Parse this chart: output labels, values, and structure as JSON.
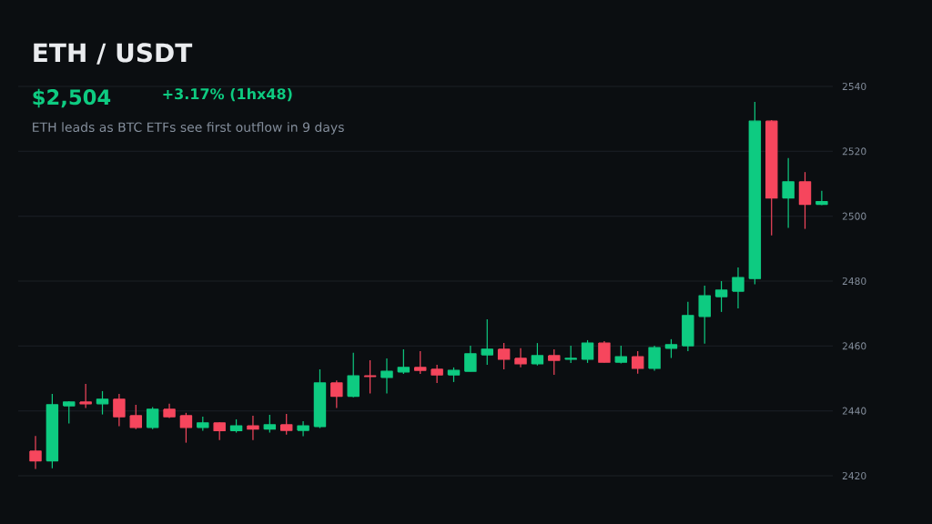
{
  "chart_data": {
    "type": "candlestick",
    "title": "ETH / USDT",
    "subtitle": "ETH leads as BTC ETFs see first outflow in 9 days",
    "annotations": [
      "$2,504",
      "+3.17%  (1hx48)"
    ],
    "categories": [
      null,
      null,
      null,
      null,
      null,
      null,
      null,
      null,
      null,
      null,
      null,
      null,
      null,
      null,
      null,
      null,
      null,
      null,
      null,
      null,
      null,
      null,
      null,
      null,
      null,
      null,
      null,
      null,
      null,
      null,
      null,
      null,
      null,
      null,
      null,
      null,
      null,
      null,
      null,
      null,
      null,
      null,
      null,
      null,
      null,
      null,
      null,
      null
    ],
    "ohlc": [
      [
        2427.6,
        2432.3,
        2422.1,
        2424.6
      ],
      [
        2424.6,
        2445.2,
        2422.3,
        2441.9
      ],
      [
        2441.6,
        2443.0,
        2436.1,
        2442.7
      ],
      [
        2442.7,
        2448.3,
        2440.9,
        2442.2
      ],
      [
        2442.2,
        2446.1,
        2438.9,
        2443.6
      ],
      [
        2443.6,
        2445.2,
        2435.3,
        2438.2
      ],
      [
        2438.5,
        2441.9,
        2434.4,
        2434.9
      ],
      [
        2434.9,
        2441.2,
        2434.4,
        2440.5
      ],
      [
        2440.5,
        2442.2,
        2437.8,
        2438.2
      ],
      [
        2438.5,
        2439.4,
        2430.2,
        2434.9
      ],
      [
        2434.9,
        2438.2,
        2433.9,
        2436.3
      ],
      [
        2436.3,
        2436.5,
        2431.0,
        2433.9
      ],
      [
        2433.9,
        2437.4,
        2433.3,
        2435.4
      ],
      [
        2435.4,
        2438.5,
        2431.0,
        2434.4
      ],
      [
        2434.4,
        2438.8,
        2433.3,
        2435.7
      ],
      [
        2435.7,
        2439.1,
        2432.7,
        2434.0
      ],
      [
        2434.0,
        2436.8,
        2432.2,
        2435.4
      ],
      [
        2435.2,
        2452.8,
        2434.7,
        2448.6
      ],
      [
        2448.6,
        2449.4,
        2440.9,
        2444.5
      ],
      [
        2444.5,
        2457.9,
        2444.2,
        2450.8
      ],
      [
        2450.8,
        2455.6,
        2445.4,
        2450.6
      ],
      [
        2450.3,
        2456.2,
        2445.4,
        2452.2
      ],
      [
        2452.0,
        2459.0,
        2451.4,
        2453.4
      ],
      [
        2453.4,
        2458.4,
        2451.4,
        2452.5
      ],
      [
        2452.8,
        2454.2,
        2448.6,
        2451.1
      ],
      [
        2451.1,
        2453.4,
        2448.9,
        2452.5
      ],
      [
        2452.2,
        2460.1,
        2452.2,
        2457.6
      ],
      [
        2457.3,
        2468.2,
        2454.2,
        2459.0
      ],
      [
        2459.0,
        2460.9,
        2452.8,
        2455.9
      ],
      [
        2456.2,
        2459.3,
        2453.4,
        2454.5
      ],
      [
        2454.5,
        2460.9,
        2454.0,
        2457.0
      ],
      [
        2457.0,
        2459.0,
        2451.1,
        2455.6
      ],
      [
        2455.9,
        2460.1,
        2454.8,
        2456.2
      ],
      [
        2455.9,
        2461.8,
        2454.8,
        2460.9
      ],
      [
        2460.9,
        2461.5,
        2454.9,
        2455.0
      ],
      [
        2455.0,
        2460.1,
        2454.6,
        2456.7
      ],
      [
        2456.7,
        2458.4,
        2451.5,
        2453.1
      ],
      [
        2453.1,
        2460.1,
        2452.4,
        2459.5
      ],
      [
        2459.3,
        2462.1,
        2456.3,
        2460.4
      ],
      [
        2460.1,
        2473.6,
        2458.4,
        2469.4
      ],
      [
        2469.1,
        2478.6,
        2460.7,
        2475.5
      ],
      [
        2475.2,
        2480.0,
        2470.5,
        2477.2
      ],
      [
        2476.9,
        2484.2,
        2471.6,
        2481.1
      ],
      [
        2480.8,
        2535.2,
        2479.0,
        2529.3
      ],
      [
        2529.3,
        2529.6,
        2494.1,
        2505.6
      ],
      [
        2505.6,
        2517.9,
        2496.4,
        2510.6
      ],
      [
        2510.6,
        2513.6,
        2496.1,
        2503.7
      ],
      [
        2503.7,
        2507.8,
        2503.4,
        2504.5
      ]
    ],
    "colors": [
      "#f6465d",
      "#0ecb81",
      "#0ecb81",
      "#f6465d",
      "#0ecb81",
      "#f6465d",
      "#f6465d",
      "#0ecb81",
      "#f6465d",
      "#f6465d",
      "#0ecb81",
      "#f6465d",
      "#0ecb81",
      "#f6465d",
      "#0ecb81",
      "#f6465d",
      "#0ecb81",
      "#0ecb81",
      "#f6465d",
      "#0ecb81",
      "#f6465d",
      "#0ecb81",
      "#0ecb81",
      "#f6465d",
      "#f6465d",
      "#0ecb81",
      "#0ecb81",
      "#0ecb81",
      "#f6465d",
      "#f6465d",
      "#0ecb81",
      "#f6465d",
      "#0ecb81",
      "#0ecb81",
      "#f6465d",
      "#0ecb81",
      "#f6465d",
      "#0ecb81",
      "#0ecb81",
      "#0ecb81",
      "#0ecb81",
      "#0ecb81",
      "#0ecb81",
      "#0ecb81",
      "#f6465d",
      "#0ecb81",
      "#f6465d",
      "#0ecb81"
    ],
    "ylim": [
      2420,
      2540
    ],
    "yticks": [
      2420,
      2440,
      2460,
      2480,
      2500,
      2520,
      2540
    ],
    "grid": "y",
    "tick_labels": "y"
  }
}
